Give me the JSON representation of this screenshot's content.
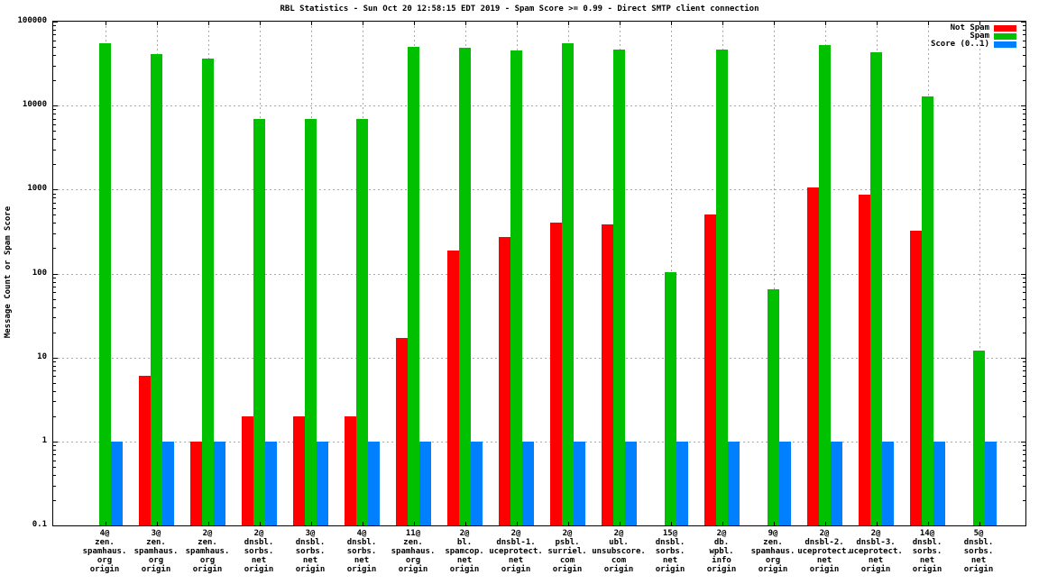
{
  "chart_data": {
    "type": "bar",
    "title": "RBL Statistics - Sun Oct 20 12:58:15 EDT 2019 - Spam Score >= 0.99 - Direct SMTP client connection",
    "ylabel": "Message Count or Spam Score",
    "yscale": "log",
    "ylim": [
      0.1,
      100000
    ],
    "ytick_labels": [
      "0.1",
      "1",
      "10",
      "100",
      "1000",
      "10000",
      "100000"
    ],
    "grid": true,
    "legend_position": "top-right-inside",
    "categories": [
      [
        "4@",
        "zen.",
        "spamhaus.",
        "org",
        "origin"
      ],
      [
        "3@",
        "zen.",
        "spamhaus.",
        "org",
        "origin"
      ],
      [
        "2@",
        "zen.",
        "spamhaus.",
        "org",
        "origin"
      ],
      [
        "2@",
        "dnsbl.",
        "sorbs.",
        "net",
        "origin"
      ],
      [
        "3@",
        "dnsbl.",
        "sorbs.",
        "net",
        "origin"
      ],
      [
        "4@",
        "dnsbl.",
        "sorbs.",
        "net",
        "origin"
      ],
      [
        "11@",
        "zen.",
        "spamhaus.",
        "org",
        "origin"
      ],
      [
        "2@",
        "bl.",
        "spamcop.",
        "net",
        "origin"
      ],
      [
        "2@",
        "dnsbl-1.",
        "uceprotect.",
        "net",
        "origin"
      ],
      [
        "2@",
        "psbl.",
        "surriel.",
        "com",
        "origin"
      ],
      [
        "2@",
        "ubl.",
        "unsubscore.",
        "com",
        "origin"
      ],
      [
        "15@",
        "dnsbl.",
        "sorbs.",
        "net",
        "origin"
      ],
      [
        "2@",
        "db.",
        "wpbl.",
        "info",
        "origin"
      ],
      [
        "9@",
        "zen.",
        "spamhaus.",
        "org",
        "origin"
      ],
      [
        "2@",
        "dnsbl-2.",
        "uceprotect.",
        "net",
        "origin"
      ],
      [
        "2@",
        "dnsbl-3.",
        "uceprotect.",
        "net",
        "origin"
      ],
      [
        "14@",
        "dnsbl.",
        "sorbs.",
        "net",
        "origin"
      ],
      [
        "5@",
        "dnsbl.",
        "sorbs.",
        "net",
        "origin"
      ]
    ],
    "series": [
      {
        "name": "Not Spam",
        "key": "not-spam",
        "color": "#ff0000",
        "values": [
          null,
          6,
          1,
          2,
          2,
          2,
          17,
          190,
          270,
          400,
          380,
          null,
          510,
          null,
          1050,
          870,
          320,
          null
        ]
      },
      {
        "name": "Spam",
        "key": "spam",
        "color": "#00c000",
        "values": [
          55000,
          41000,
          36000,
          7000,
          7000,
          7000,
          50000,
          49000,
          45000,
          55000,
          47000,
          105,
          46000,
          65,
          52000,
          43000,
          13000,
          12
        ]
      },
      {
        "name": "Score (0..1)",
        "key": "score",
        "color": "#0080ff",
        "values": [
          1,
          1,
          1,
          1,
          1,
          1,
          1,
          1,
          1,
          1,
          1,
          1,
          1,
          1,
          1,
          1,
          1,
          1
        ]
      }
    ]
  },
  "colors": {
    "background": "#ffffff",
    "border": "#000000",
    "grid": "#a8a8a8",
    "text": "#000000"
  }
}
